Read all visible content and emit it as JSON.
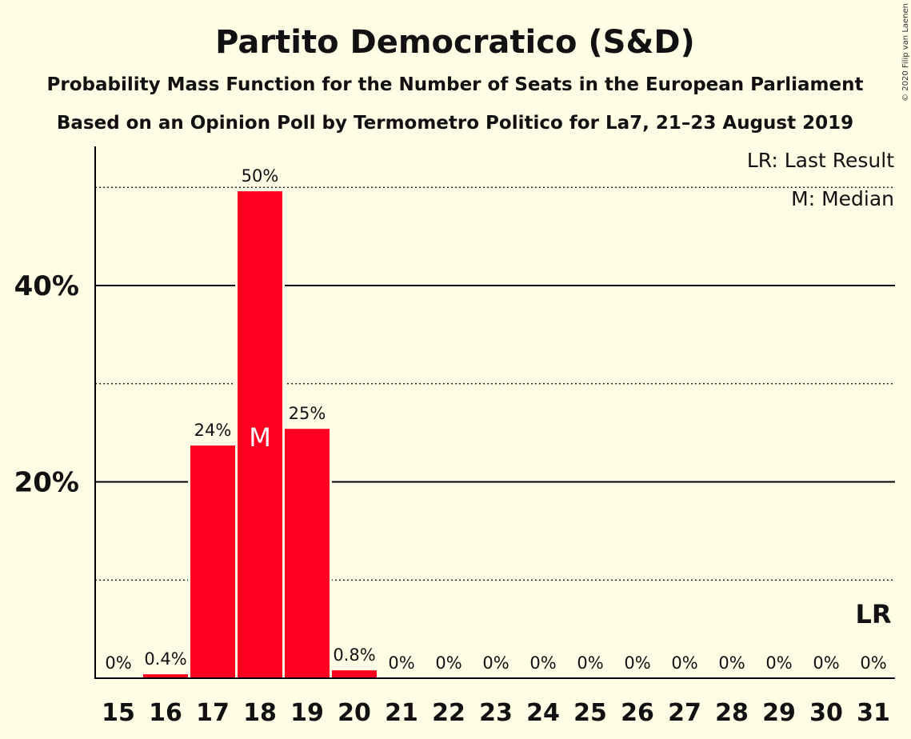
{
  "chart_data": {
    "type": "bar",
    "title": "Partito Democratico (S&D)",
    "subtitle": "Probability Mass Function for the Number of Seats in the European Parliament",
    "subtitle2": "Based on an Opinion Poll by Termometro Politico for La7, 21–23 August 2019",
    "copyright": "© 2020 Filip van Laenen",
    "categories": [
      "15",
      "16",
      "17",
      "18",
      "19",
      "20",
      "21",
      "22",
      "23",
      "24",
      "25",
      "26",
      "27",
      "28",
      "29",
      "30",
      "31"
    ],
    "values": [
      0,
      0.4,
      23.7,
      49.6,
      25.4,
      0.8,
      0,
      0,
      0,
      0,
      0,
      0,
      0,
      0,
      0,
      0,
      0
    ],
    "data_labels": [
      "0%",
      "0.4%",
      "24%",
      "50%",
      "25%",
      "0.8%",
      "0%",
      "0%",
      "0%",
      "0%",
      "0%",
      "0%",
      "0%",
      "0%",
      "0%",
      "0%",
      "0%"
    ],
    "ylim": [
      0,
      54
    ],
    "yticks_major": [
      20,
      40
    ],
    "ytick_labels": [
      "20%",
      "40%"
    ],
    "gridlines_dotted": [
      10,
      30,
      50
    ],
    "bar_color": "#ff0021",
    "median_category": "18",
    "median_marker": "M",
    "last_result_category": "31",
    "last_result_marker": "LR",
    "legend": [
      "LR: Last Result",
      "M: Median"
    ],
    "legend_position": "top-right",
    "xlabel": "",
    "ylabel": ""
  }
}
